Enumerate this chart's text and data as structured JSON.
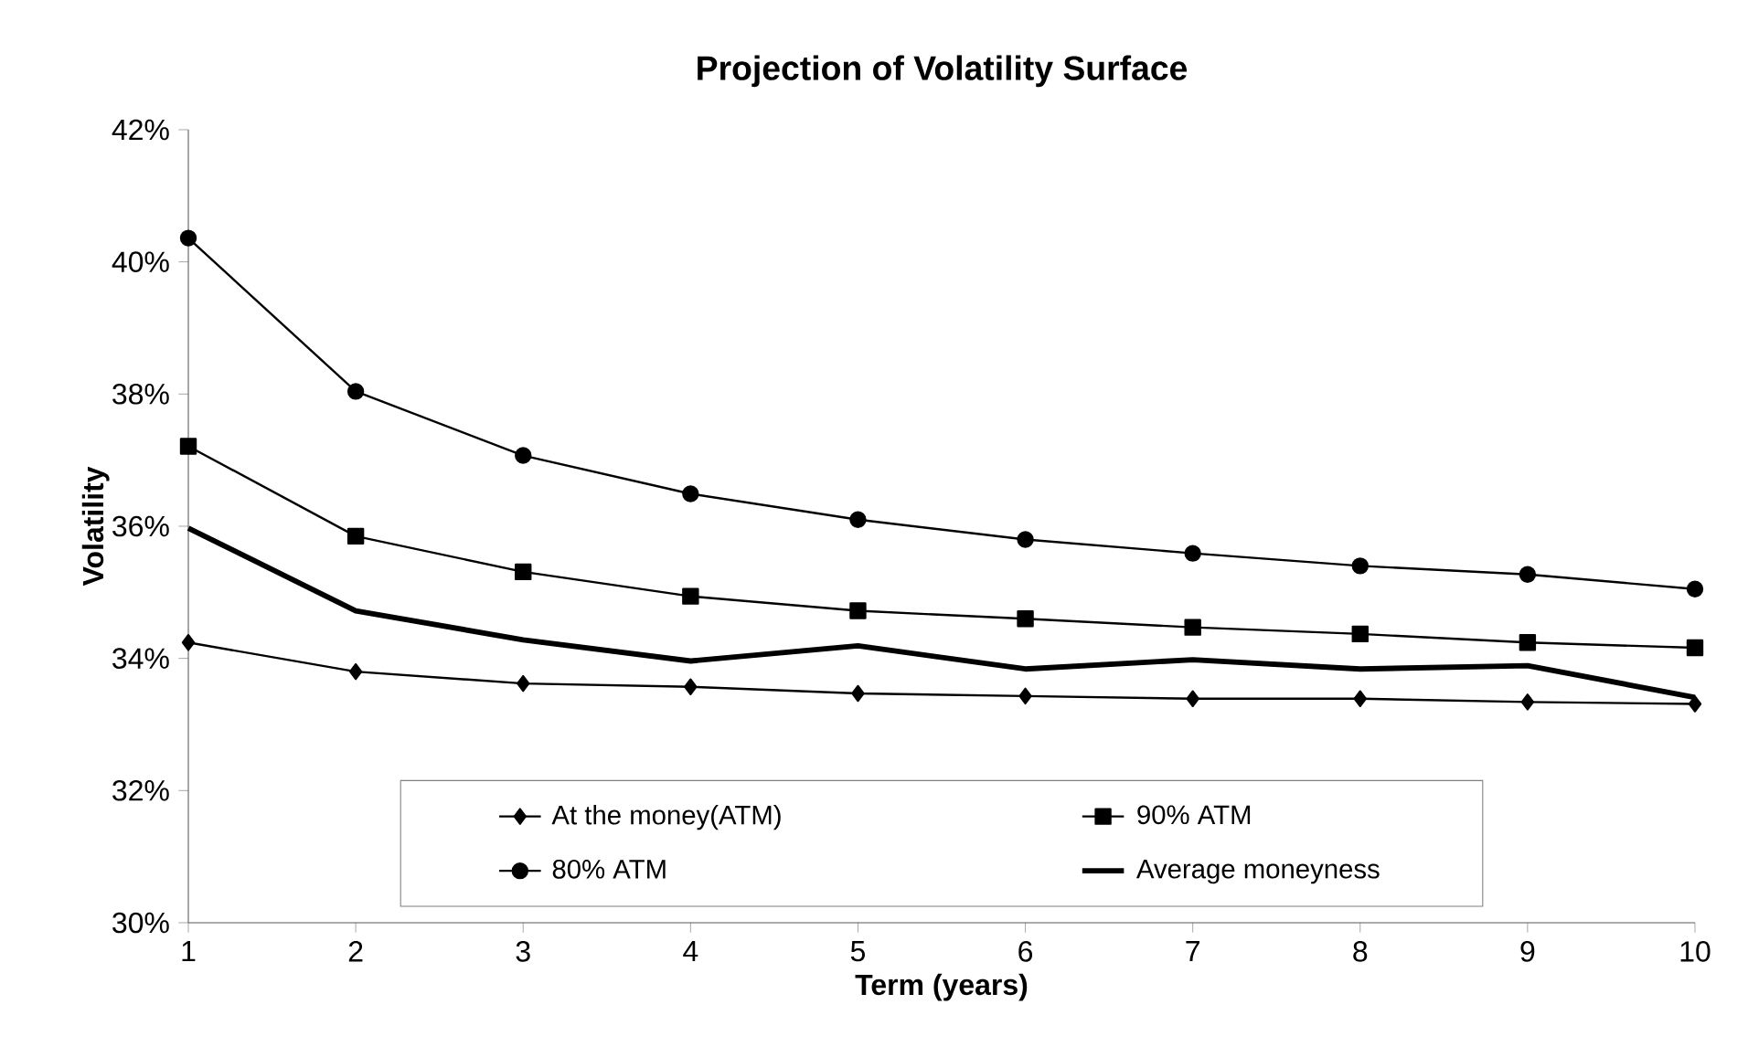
{
  "chart_data": {
    "type": "line",
    "title": "Projection of Volatility Surface",
    "xlabel": "Term (years)",
    "ylabel": "Volatility",
    "x": [
      1,
      2,
      3,
      4,
      5,
      6,
      7,
      8,
      9,
      10
    ],
    "series": [
      {
        "name": "At the money(ATM)",
        "color": "#000000",
        "marker": "diamond",
        "values": [
          34.24,
          33.8,
          33.62,
          33.57,
          33.47,
          33.43,
          33.39,
          33.39,
          33.34,
          33.31
        ]
      },
      {
        "name": "90% ATM",
        "color": "#000000",
        "marker": "square",
        "values": [
          37.21,
          35.85,
          35.31,
          34.94,
          34.72,
          34.6,
          34.47,
          34.37,
          34.24,
          34.16
        ]
      },
      {
        "name": "80% ATM",
        "color": "#000000",
        "marker": "circle",
        "values": [
          40.36,
          38.04,
          37.07,
          36.49,
          36.1,
          35.8,
          35.59,
          35.4,
          35.27,
          35.05
        ]
      },
      {
        "name": "Average moneyness",
        "color": "#000000",
        "marker": "none",
        "values": [
          35.97,
          34.72,
          34.28,
          33.96,
          34.19,
          33.84,
          33.98,
          33.84,
          33.89,
          33.41
        ]
      }
    ],
    "xlim": [
      1,
      10
    ],
    "xticks": [
      1,
      2,
      3,
      4,
      5,
      6,
      7,
      8,
      9,
      10
    ],
    "ylim": [
      30,
      42
    ],
    "yticks": [
      {
        "value": 30,
        "label": "30%"
      },
      {
        "value": 32,
        "label": "32%"
      },
      {
        "value": 34,
        "label": "34%"
      },
      {
        "value": 36,
        "label": "36%"
      },
      {
        "value": 38,
        "label": "38%"
      },
      {
        "value": 40,
        "label": "40%"
      },
      {
        "value": 42,
        "label": "42%"
      }
    ],
    "grid": false,
    "legend": "bottom",
    "line_style": "solid"
  }
}
